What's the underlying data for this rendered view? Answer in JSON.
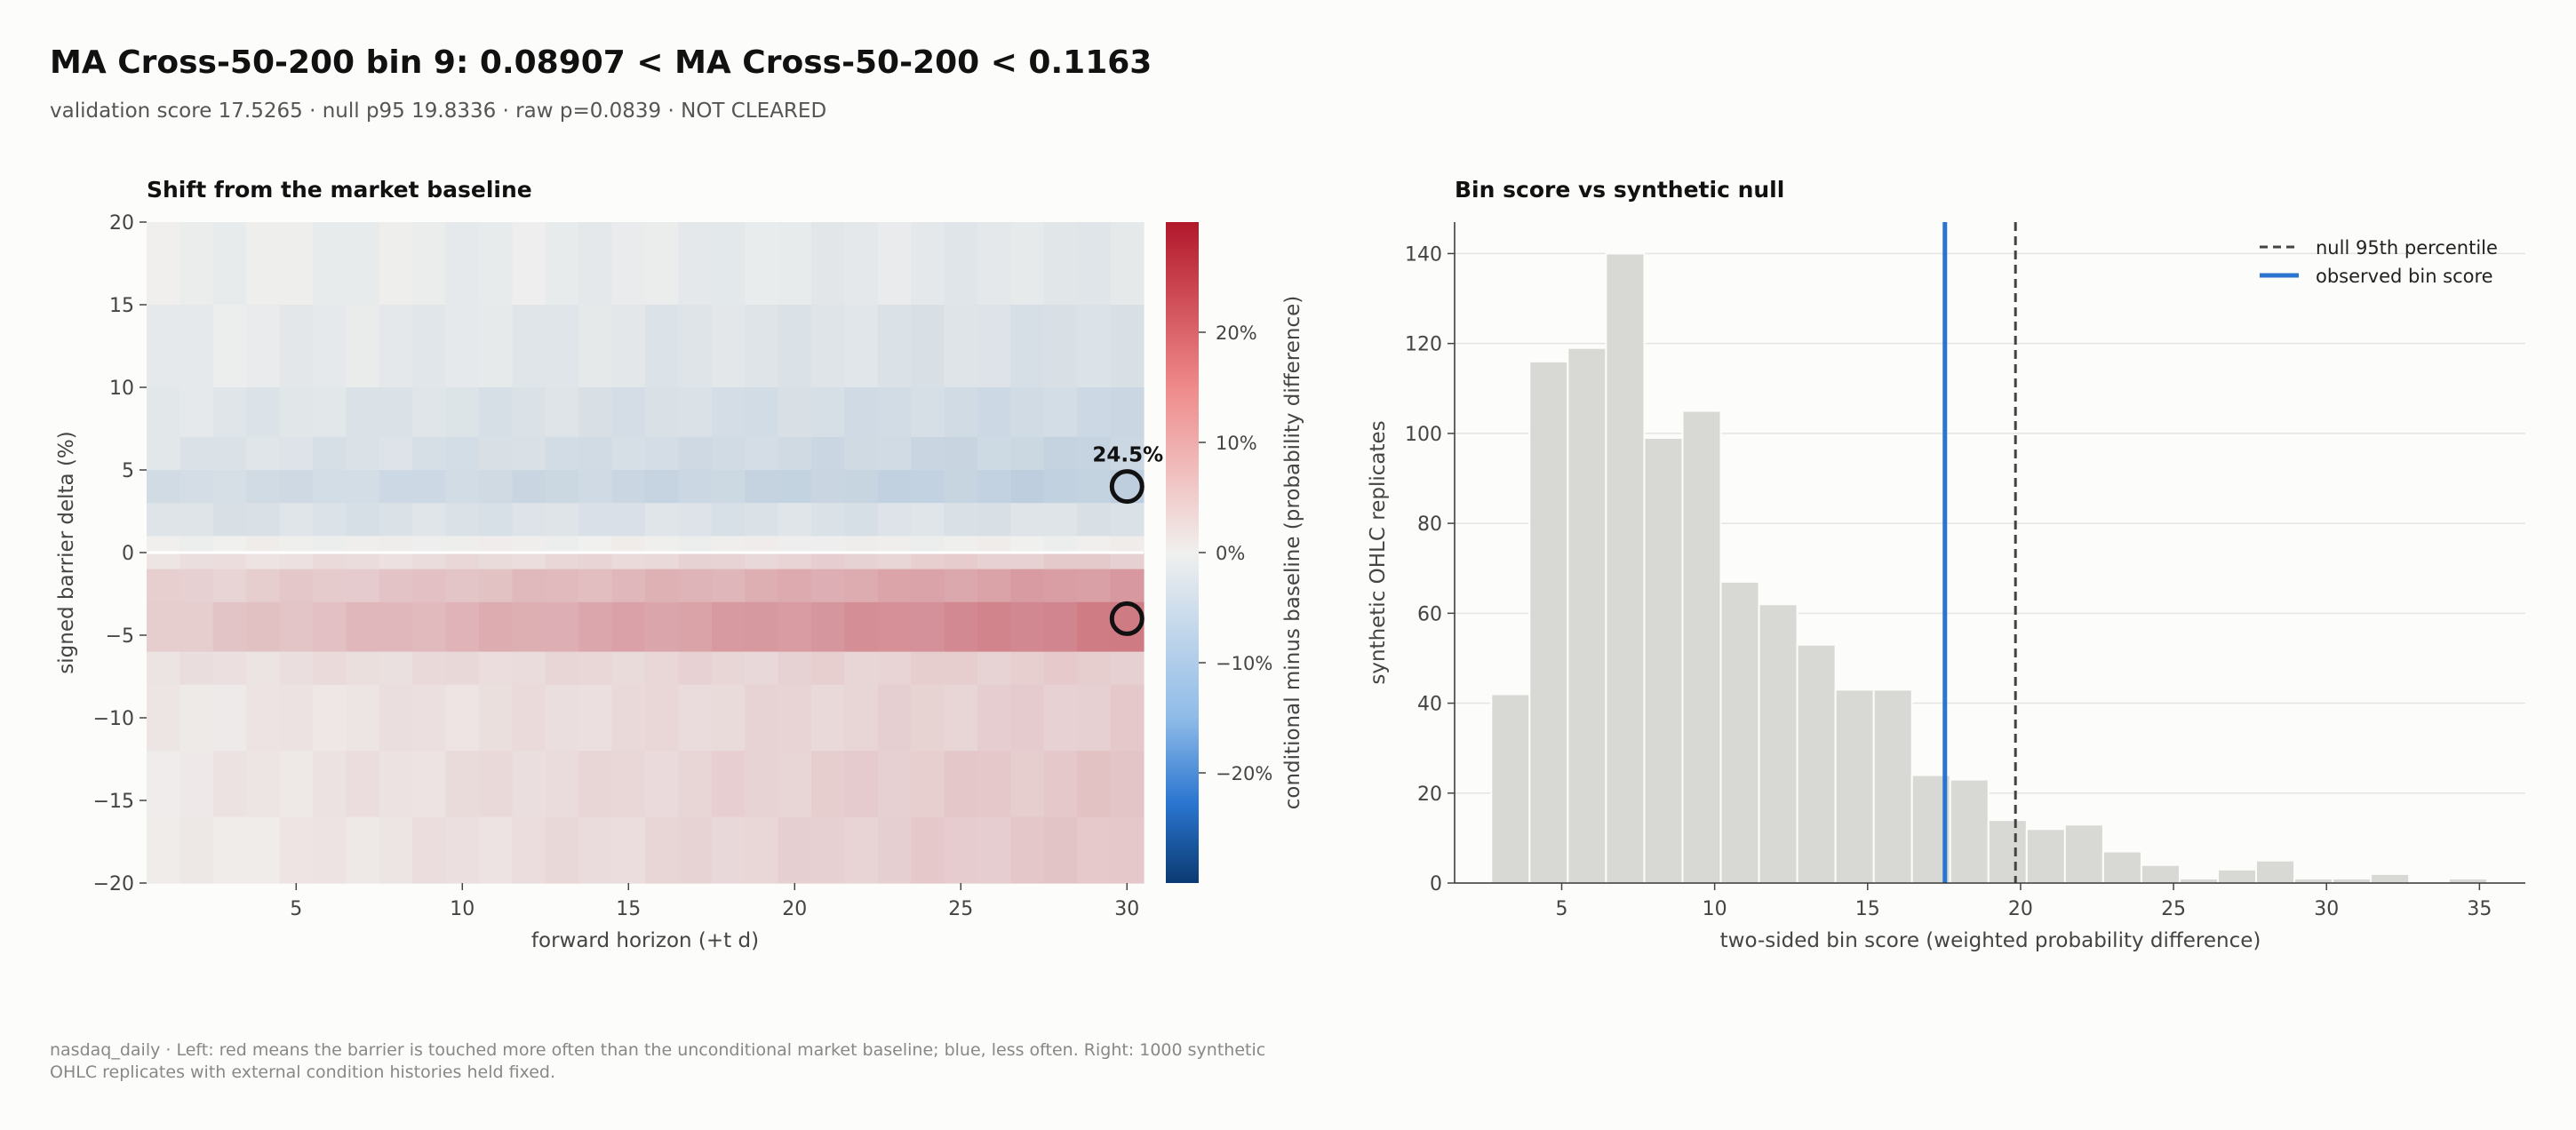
{
  "header": {
    "title": "MA Cross-50-200 bin 9: 0.08907 < MA Cross-50-200 < 0.1163",
    "subtitle": "validation score 17.5265 · null p95 19.8336 · raw p=0.0839 · NOT CLEARED"
  },
  "footnote": "nasdaq_daily · Left: red means the barrier is touched more often than the unconditional market baseline; blue, less often. Right: 1000 synthetic OHLC replicates with external condition histories held fixed.",
  "colors": {
    "background": "#fcfcfa",
    "positive": "#b2182b",
    "negative": "#2166ac",
    "neutral": "#f0f0ee",
    "hist_bar": "#d8d8d4",
    "observed_line": "#2a75d0",
    "null_line": "#444444"
  },
  "chart_data": [
    {
      "type": "heatmap",
      "title": "Shift from the market baseline",
      "xlabel": "forward horizon (+t d)",
      "ylabel": "signed barrier delta (%)",
      "colorbar_label": "conditional minus baseline (probability difference)",
      "x_range": [
        1,
        30
      ],
      "y_range": [
        -20,
        20
      ],
      "x_ticks": [
        5,
        10,
        15,
        20,
        25,
        30
      ],
      "y_ticks": [
        20,
        15,
        10,
        5,
        0,
        -5,
        -10,
        -15,
        -20
      ],
      "colorbar_range": [
        -0.3,
        0.3
      ],
      "colorbar_ticks": [
        {
          "value": 0.2,
          "label": "20%"
        },
        {
          "value": 0.1,
          "label": "10%"
        },
        {
          "value": 0.0,
          "label": "0%"
        },
        {
          "value": -0.1,
          "label": "−10%"
        },
        {
          "value": -0.2,
          "label": "−20%"
        }
      ],
      "bands": [
        {
          "y": [
            15,
            20
          ],
          "v": [
            -0.005,
            -0.02
          ]
        },
        {
          "y": [
            10,
            15
          ],
          "v": [
            -0.01,
            -0.035
          ]
        },
        {
          "y": [
            7,
            10
          ],
          "v": [
            -0.02,
            -0.05
          ]
        },
        {
          "y": [
            5,
            7
          ],
          "v": [
            -0.025,
            -0.06
          ]
        },
        {
          "y": [
            3,
            5
          ],
          "v": [
            -0.04,
            -0.07
          ]
        },
        {
          "y": [
            1,
            3
          ],
          "v": [
            -0.03,
            -0.03
          ]
        },
        {
          "y": [
            0,
            1
          ],
          "v": [
            0.0,
            0.0
          ]
        },
        {
          "y": [
            -1,
            0
          ],
          "v": [
            0.02,
            0.05
          ]
        },
        {
          "y": [
            -3,
            -1
          ],
          "v": [
            0.04,
            0.12
          ]
        },
        {
          "y": [
            -6,
            -3
          ],
          "v": [
            0.05,
            0.16
          ]
        },
        {
          "y": [
            -8,
            -6
          ],
          "v": [
            0.02,
            0.05
          ]
        },
        {
          "y": [
            -12,
            -8
          ],
          "v": [
            0.01,
            0.05
          ]
        },
        {
          "y": [
            -16,
            -12
          ],
          "v": [
            0.01,
            0.06
          ]
        },
        {
          "y": [
            -20,
            -16
          ],
          "v": [
            0.005,
            0.06
          ]
        }
      ],
      "markers": [
        {
          "x": 30,
          "y": 4,
          "label": "24.5%"
        },
        {
          "x": 30,
          "y": -4,
          "label": ""
        }
      ]
    },
    {
      "type": "bar",
      "title": "Bin score vs synthetic null",
      "xlabel": "two-sided bin score (weighted probability difference)",
      "ylabel": "synthetic OHLC replicates",
      "xlim": [
        1.5,
        36.5
      ],
      "ylim": [
        0,
        147
      ],
      "x_ticks": [
        5,
        10,
        15,
        20,
        25,
        30,
        35
      ],
      "y_ticks": [
        0,
        20,
        40,
        60,
        80,
        100,
        120,
        140
      ],
      "bin_width": 1.25,
      "bins": [
        {
          "x0": 2.7,
          "count": 42
        },
        {
          "x0": 3.95,
          "count": 116
        },
        {
          "x0": 5.2,
          "count": 119
        },
        {
          "x0": 6.45,
          "count": 140
        },
        {
          "x0": 7.7,
          "count": 99
        },
        {
          "x0": 8.95,
          "count": 105
        },
        {
          "x0": 10.2,
          "count": 67
        },
        {
          "x0": 11.45,
          "count": 62
        },
        {
          "x0": 12.7,
          "count": 53
        },
        {
          "x0": 13.95,
          "count": 43
        },
        {
          "x0": 15.2,
          "count": 43
        },
        {
          "x0": 16.45,
          "count": 24
        },
        {
          "x0": 17.7,
          "count": 23
        },
        {
          "x0": 18.95,
          "count": 14
        },
        {
          "x0": 20.2,
          "count": 12
        },
        {
          "x0": 21.45,
          "count": 13
        },
        {
          "x0": 22.7,
          "count": 7
        },
        {
          "x0": 23.95,
          "count": 4
        },
        {
          "x0": 25.2,
          "count": 1
        },
        {
          "x0": 26.45,
          "count": 3
        },
        {
          "x0": 27.7,
          "count": 5
        },
        {
          "x0": 28.95,
          "count": 1
        },
        {
          "x0": 30.2,
          "count": 1
        },
        {
          "x0": 31.45,
          "count": 2
        },
        {
          "x0": 34.0,
          "count": 1
        }
      ],
      "observed_score": 17.5265,
      "null_p95": 19.8336,
      "legend": {
        "placement": "top-right",
        "items": [
          {
            "label": "null 95th percentile",
            "style": "dashed"
          },
          {
            "label": "observed bin score",
            "style": "solid"
          }
        ]
      },
      "grid": "horizontal"
    }
  ]
}
